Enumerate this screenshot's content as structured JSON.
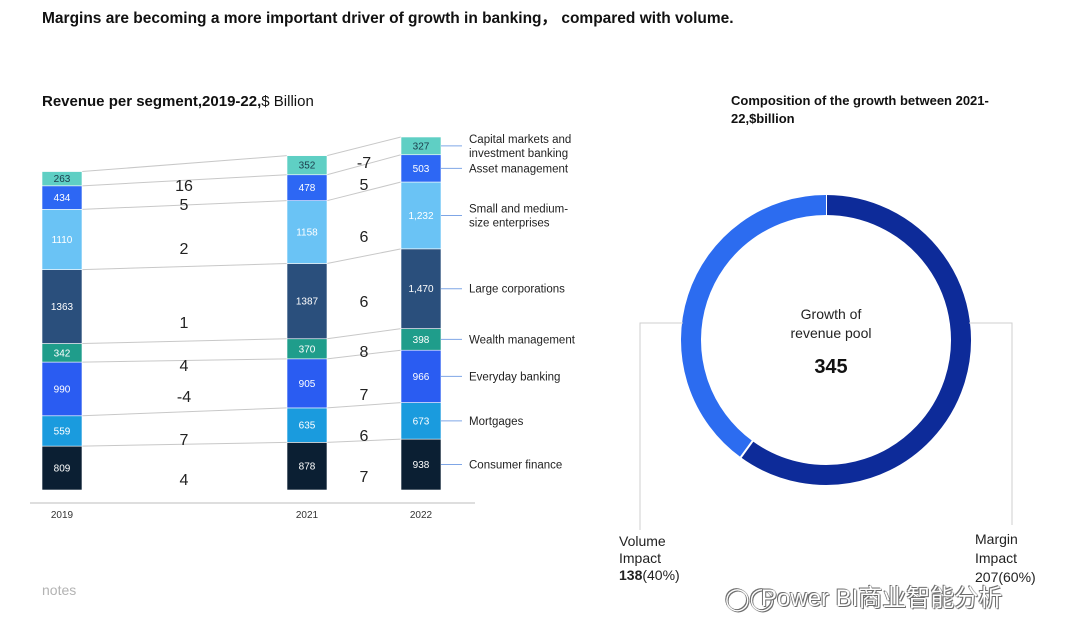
{
  "header": {
    "title": "Margins are becoming a more important driver of growth in banking， compared with volume.",
    "left_subtitle_bold": "Revenue per segment,2019-22,",
    "left_subtitle_rest": "$ Billion",
    "right_subtitle": "Composition of the growth between 2021-22,$billion",
    "notes": "notes",
    "watermark": "Power BI商业智能分析"
  },
  "colors": {
    "consumer_finance": "#0b1f33",
    "mortgages": "#1a9bde",
    "everyday_banking": "#2a5cf2",
    "wealth_management": "#1f9d8b",
    "large_corporations": "#2a4f7c",
    "sme": "#6ac3f5",
    "asset_management": "#2d67f4",
    "capital_markets": "#5fcfc4",
    "donut_volume": "#2c6cf0",
    "donut_margin": "#0d2b99"
  },
  "chart_data": [
    {
      "type": "bar",
      "stacked": true,
      "categories": [
        "2019",
        "2021",
        "2022"
      ],
      "series": [
        {
          "name": "Consumer finance",
          "values": [
            809,
            878,
            938
          ],
          "labels": [
            "809",
            "878",
            "938"
          ]
        },
        {
          "name": "Mortgages",
          "values": [
            559,
            635,
            673
          ],
          "labels": [
            "559",
            "635",
            "673"
          ]
        },
        {
          "name": "Everyday banking",
          "values": [
            990,
            905,
            966
          ],
          "labels": [
            "990",
            "905",
            "966"
          ]
        },
        {
          "name": "Wealth management",
          "values": [
            342,
            370,
            398
          ],
          "labels": [
            "342",
            "370",
            "398"
          ]
        },
        {
          "name": "Large corporations",
          "values": [
            1363,
            1387,
            1470
          ],
          "labels": [
            "1363",
            "1387",
            "1,470"
          ]
        },
        {
          "name": "Small and medium-size enterprises",
          "values": [
            1110,
            1158,
            1232
          ],
          "labels": [
            "1110",
            "1158",
            "1,232"
          ]
        },
        {
          "name": "Asset management",
          "values": [
            434,
            478,
            503
          ],
          "labels": [
            "434",
            "478",
            "503"
          ]
        },
        {
          "name": "Capital markets and investment banking",
          "values": [
            263,
            352,
            327
          ],
          "labels": [
            "263",
            "352",
            "327"
          ]
        }
      ],
      "growth_2019_2021": [
        "4",
        "7",
        "-4",
        "4",
        "1",
        "2",
        "5",
        "16"
      ],
      "growth_2021_2022": [
        "7",
        "6",
        "7",
        "8",
        "6",
        "6",
        "5",
        "-7"
      ],
      "legend_labels": [
        "Consumer finance",
        "Mortgages",
        "Everyday banking",
        "Wealth management",
        "Large corporations",
        "Small and medium-\nsize enterprises",
        "Asset management",
        "Capital markets and\ninvestment banking"
      ]
    },
    {
      "type": "pie",
      "title": "Composition of the growth between 2021-22,$billion",
      "center_label": "Growth of\nrevenue pool",
      "total": "345",
      "slices": [
        {
          "name": "Margin Impact",
          "value": 207,
          "value_label": "207",
          "percent_label": "(60%)"
        },
        {
          "name": "Volume Impact",
          "value": 138,
          "value_label": "138",
          "percent_label": "(40%)"
        }
      ]
    }
  ]
}
